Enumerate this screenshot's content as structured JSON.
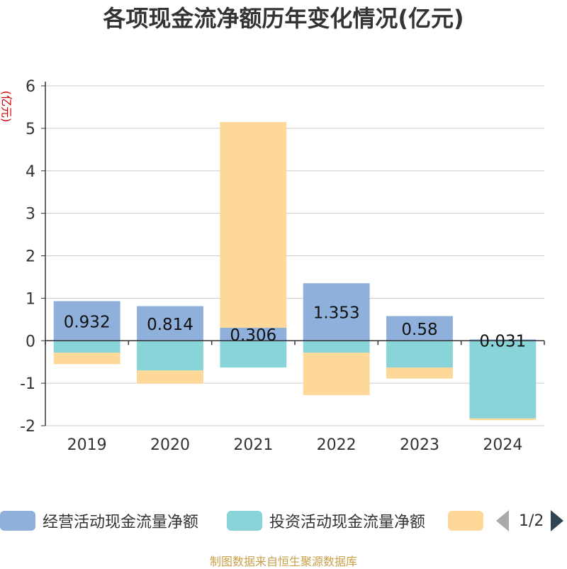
{
  "chart_data": {
    "type": "bar",
    "stacked": true,
    "title": "各项现金流净额历年变化情况(亿元)",
    "unit_label": "(亿元)",
    "categories": [
      "2019",
      "2020",
      "2021",
      "2022",
      "2023",
      "2024"
    ],
    "ylim": [
      -2,
      6
    ],
    "yticks": [
      -2,
      -1,
      0,
      1,
      2,
      3,
      4,
      5,
      6
    ],
    "grid": true,
    "series": [
      {
        "name": "经营活动现金流量净额",
        "color": "#8eb0db",
        "values": [
          0.932,
          0.814,
          0.306,
          1.353,
          0.58,
          0.031
        ],
        "data_labels": [
          "0.932",
          "0.814",
          "0.306",
          "1.353",
          "0.58",
          "0.031"
        ]
      },
      {
        "name": "投资活动现金流量净额",
        "color": "#88d4d8",
        "values": [
          -0.28,
          -0.7,
          -0.63,
          -0.28,
          -0.63,
          -1.83
        ]
      },
      {
        "name": "",
        "color": "#fdd899",
        "values": [
          -0.27,
          -0.31,
          4.84,
          -1.0,
          -0.26,
          -0.04
        ]
      }
    ],
    "legend_position": "bottom",
    "legend_page": "1/2"
  },
  "source": "制图数据来自恒生聚源数据库"
}
